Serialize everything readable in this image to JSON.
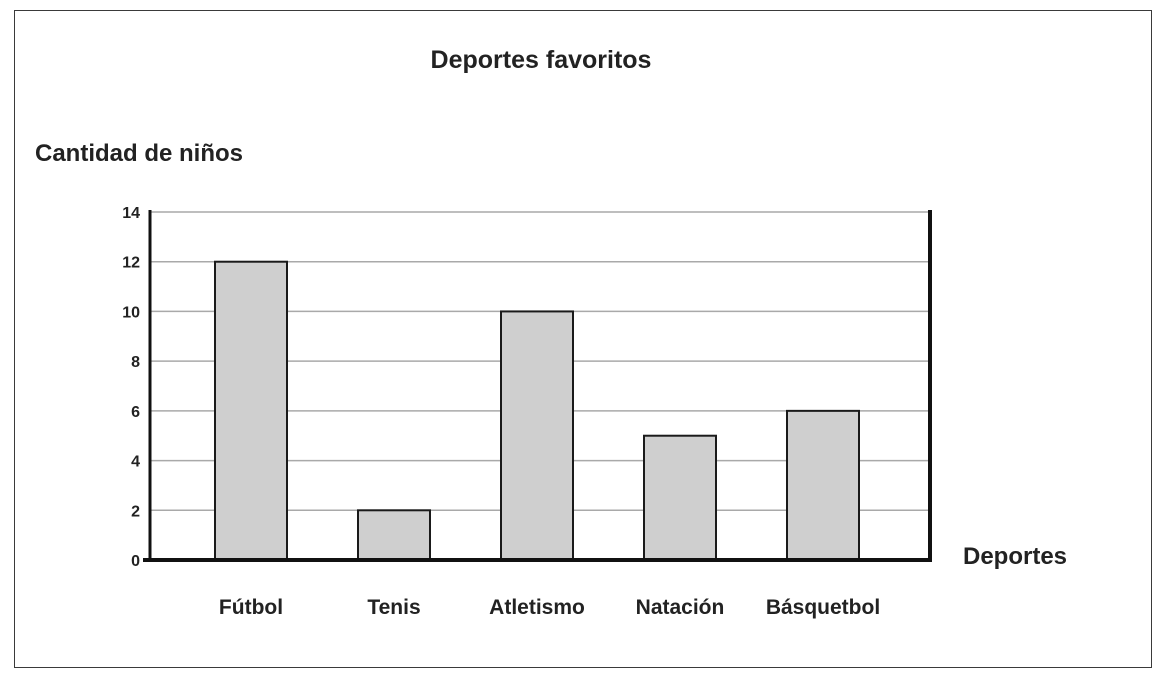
{
  "chart_data": {
    "type": "bar",
    "title": "Deportes favoritos",
    "ylabel": "Cantidad de niños",
    "xlabel": "Deportes",
    "categories": [
      "Fútbol",
      "Tenis",
      "Atletismo",
      "Natación",
      "Básquetbol"
    ],
    "values": [
      12,
      2,
      10,
      5,
      6
    ],
    "ylim": [
      0,
      14
    ],
    "yticks": [
      "0",
      "2",
      "4",
      "6",
      "8",
      "10",
      "12",
      "14"
    ],
    "grid": true,
    "legend": "none",
    "colors": {
      "bar_fill": "#cfcfcf",
      "bar_stroke": "#1a1a1a",
      "grid": "#a9a9a9",
      "axis": "#111111"
    }
  }
}
